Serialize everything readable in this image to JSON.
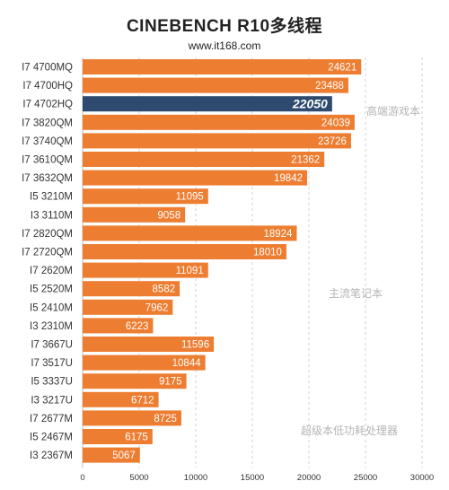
{
  "header": {
    "title": "CINEBENCH R10多线程",
    "subtitle": "www.it168.com"
  },
  "colors": {
    "bar": "#ED7D31",
    "highlight_bar": "#2E4A6E",
    "grid": "#d0d0d0"
  },
  "chart_data": {
    "type": "bar",
    "orientation": "horizontal",
    "title": "CINEBENCH R10多线程",
    "categories": [
      "I7 4700MQ",
      "I7 4700HQ",
      "I7 4702HQ",
      "I7 3820QM",
      "I7 3740QM",
      "I7 3610QM",
      "I7 3632QM",
      "I5 3210M",
      "I3 3110M",
      "I7 2820QM",
      "I7 2720QM",
      "I7 2620M",
      "I5 2520M",
      "I5 2410M",
      "I3 2310M",
      "I7 3667U",
      "I7 3517U",
      "I5 3337U",
      "I3 3217U",
      "I7 2677M",
      "I5 2467M",
      "I3 2367M"
    ],
    "values": [
      24621,
      23488,
      22050,
      24039,
      23726,
      21362,
      19842,
      11095,
      9058,
      18924,
      18010,
      11091,
      8582,
      7962,
      6223,
      11596,
      10844,
      9175,
      6712,
      8725,
      6175,
      5067
    ],
    "highlight_index": 2,
    "xlim": [
      0,
      30000
    ],
    "x_ticks": [
      0,
      5000,
      10000,
      15000,
      20000,
      25000,
      30000
    ],
    "grid": "vertical dashed",
    "annotations": [
      "高端游戏本",
      "主流笔记本",
      "超级本低功耗处理器"
    ]
  }
}
